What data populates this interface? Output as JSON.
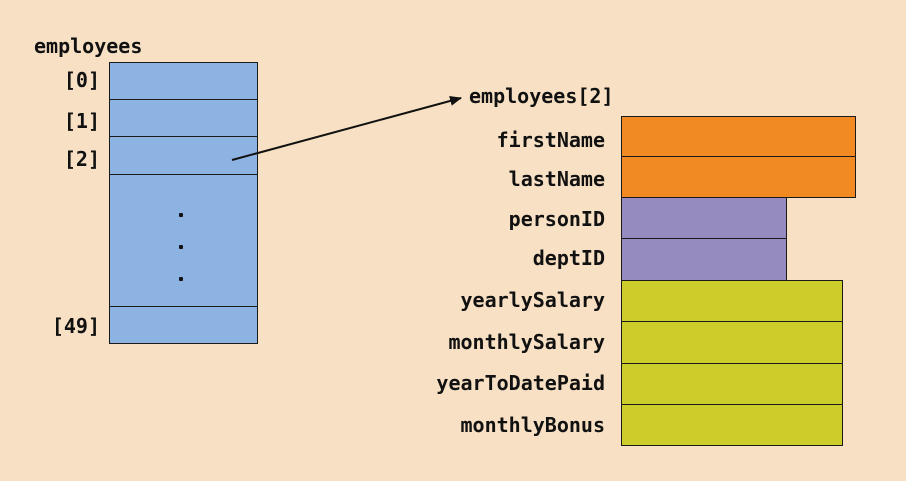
{
  "array": {
    "name": "employees",
    "indices": [
      "[0]",
      "[1]",
      "[2]",
      "[49]"
    ]
  },
  "record": {
    "title": "employees[2]",
    "fields": [
      {
        "name": "firstName",
        "color": "#f28a24"
      },
      {
        "name": "lastName",
        "color": "#f28a24"
      },
      {
        "name": "personID",
        "color": "#958bbf"
      },
      {
        "name": "deptID",
        "color": "#958bbf"
      },
      {
        "name": "yearlySalary",
        "color": "#cccc2a"
      },
      {
        "name": "monthlySalary",
        "color": "#cccc2a"
      },
      {
        "name": "yearToDatePaid",
        "color": "#cccc2a"
      },
      {
        "name": "monthlyBonus",
        "color": "#cccc2a"
      }
    ]
  }
}
